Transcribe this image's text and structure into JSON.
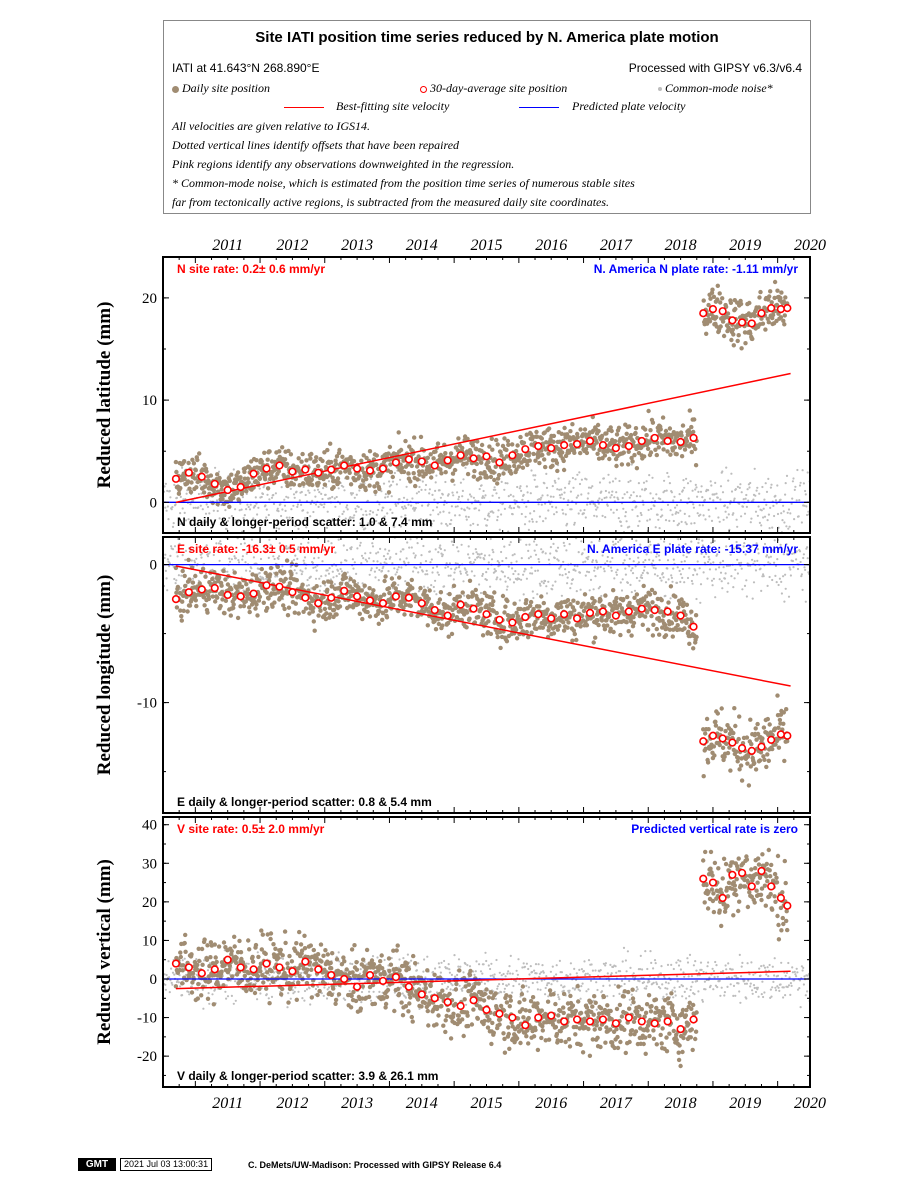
{
  "legend": {
    "title": "Site IATI position time series reduced by N. America plate motion",
    "site_location": "IATI at 41.643°N 268.890°E",
    "processing": "Processed with GIPSY v6.3/v6.4",
    "daily_label": "Daily site position",
    "avg_label": "30-day-average site position",
    "cm_label": "Common-mode noise*",
    "best_fit_label": "Best-fitting site velocity",
    "plate_label": "Predicted plate velocity",
    "notes": [
      "All velocities are given relative to IGS14.",
      "Dotted vertical lines identify offsets that have been repaired",
      "Pink regions identify any observations downweighted in the regression.",
      "* Common-mode noise, which is estimated from the position time series of numerous stable sites",
      "far from tectonically active regions, is subtracted from the measured daily site coordinates."
    ]
  },
  "colors": {
    "daily": "#a08c72",
    "avg_edge": "#ff0000",
    "avg_fill": "#ffffff",
    "common_mode": "#bdbdbd",
    "fit_line": "#ff0000",
    "plate_line": "#0000ff",
    "site_rate_text": "#ff0000",
    "plate_rate_text": "#0000ff"
  },
  "footer": {
    "logo": "GMT",
    "timestamp": "2021 Jul 03 13:00:31",
    "credit": "C. DeMets/UW-Madison: Processed with GIPSY Release 6.4"
  },
  "chart_data": [
    {
      "type": "scatter",
      "panel": "north",
      "ylabel": "Reduced latitude (mm)",
      "xlim": [
        2010.5,
        2020.5
      ],
      "ylim": [
        -3,
        24
      ],
      "yticks": [
        0,
        10,
        20
      ],
      "xticks": [
        2011,
        2012,
        2013,
        2014,
        2015,
        2016,
        2017,
        2018,
        2019,
        2020
      ],
      "xticklabels": [
        "2011",
        "2012",
        "2013",
        "2014",
        "2015",
        "2016",
        "2017",
        "2018",
        "2019",
        "2020"
      ],
      "site_rate": "N site rate:  0.2± 0.6 mm/yr",
      "plate_rate": "N. America N plate rate: -1.11 mm/yr",
      "scatter": "N daily & longer-period scatter:   1.0 &   7.4 mm",
      "fit_line": [
        [
          2010.7,
          0.0
        ],
        [
          2020.2,
          12.6
        ]
      ],
      "plate_line": [
        [
          2010.5,
          0.0
        ],
        [
          2020.5,
          0.0
        ]
      ],
      "segments": [
        {
          "t_start": 2010.7,
          "t_end": 2018.75,
          "avg": [
            [
              2010.7,
              2.3
            ],
            [
              2010.9,
              2.9
            ],
            [
              2011.1,
              2.5
            ],
            [
              2011.3,
              1.8
            ],
            [
              2011.5,
              1.2
            ],
            [
              2011.7,
              1.5
            ],
            [
              2011.9,
              2.8
            ],
            [
              2012.1,
              3.3
            ],
            [
              2012.3,
              3.6
            ],
            [
              2012.5,
              3.0
            ],
            [
              2012.7,
              3.2
            ],
            [
              2012.9,
              2.9
            ],
            [
              2013.1,
              3.2
            ],
            [
              2013.3,
              3.6
            ],
            [
              2013.5,
              3.3
            ],
            [
              2013.7,
              3.1
            ],
            [
              2013.9,
              3.3
            ],
            [
              2014.1,
              3.9
            ],
            [
              2014.3,
              4.2
            ],
            [
              2014.5,
              4.0
            ],
            [
              2014.7,
              3.6
            ],
            [
              2014.9,
              4.1
            ],
            [
              2015.1,
              4.6
            ],
            [
              2015.3,
              4.3
            ],
            [
              2015.5,
              4.5
            ],
            [
              2015.7,
              3.9
            ],
            [
              2015.9,
              4.6
            ],
            [
              2016.1,
              5.2
            ],
            [
              2016.3,
              5.5
            ],
            [
              2016.5,
              5.3
            ],
            [
              2016.7,
              5.6
            ],
            [
              2016.9,
              5.7
            ],
            [
              2017.1,
              6.0
            ],
            [
              2017.3,
              5.6
            ],
            [
              2017.5,
              5.3
            ],
            [
              2017.7,
              5.5
            ],
            [
              2017.9,
              6.0
            ],
            [
              2018.1,
              6.3
            ],
            [
              2018.3,
              6.0
            ],
            [
              2018.5,
              5.9
            ],
            [
              2018.7,
              6.3
            ]
          ],
          "noise": 1.0
        },
        {
          "t_start": 2018.85,
          "t_end": 2020.15,
          "avg": [
            [
              2018.85,
              18.5
            ],
            [
              2019.0,
              18.9
            ],
            [
              2019.15,
              18.7
            ],
            [
              2019.3,
              17.8
            ],
            [
              2019.45,
              17.6
            ],
            [
              2019.6,
              17.5
            ],
            [
              2019.75,
              18.5
            ],
            [
              2019.9,
              19.0
            ],
            [
              2020.05,
              18.9
            ],
            [
              2020.15,
              19.0
            ]
          ],
          "noise": 1.2
        }
      ],
      "common_mode_noise": 1.5
    },
    {
      "type": "scatter",
      "panel": "east",
      "ylabel": "Reduced longitude (mm)",
      "xlim": [
        2010.5,
        2020.5
      ],
      "ylim": [
        -18,
        2
      ],
      "yticks": [
        0,
        -10
      ],
      "xticks": [
        2011,
        2012,
        2013,
        2014,
        2015,
        2016,
        2017,
        2018,
        2019,
        2020
      ],
      "site_rate": "E site rate: -16.3± 0.5 mm/yr",
      "plate_rate": "N. America E plate rate: -15.37 mm/yr",
      "scatter": "E daily & longer-period scatter:   0.8 &   5.4 mm",
      "fit_line": [
        [
          2010.7,
          -0.1
        ],
        [
          2020.2,
          -8.8
        ]
      ],
      "plate_line": [
        [
          2010.5,
          0.0
        ],
        [
          2020.5,
          0.0
        ]
      ],
      "segments": [
        {
          "t_start": 2010.7,
          "t_end": 2018.75,
          "avg": [
            [
              2010.7,
              -2.5
            ],
            [
              2010.9,
              -2.0
            ],
            [
              2011.1,
              -1.8
            ],
            [
              2011.3,
              -1.7
            ],
            [
              2011.5,
              -2.2
            ],
            [
              2011.7,
              -2.3
            ],
            [
              2011.9,
              -2.1
            ],
            [
              2012.1,
              -1.5
            ],
            [
              2012.3,
              -1.6
            ],
            [
              2012.5,
              -2.0
            ],
            [
              2012.7,
              -2.4
            ],
            [
              2012.9,
              -2.8
            ],
            [
              2013.1,
              -2.4
            ],
            [
              2013.3,
              -1.9
            ],
            [
              2013.5,
              -2.3
            ],
            [
              2013.7,
              -2.6
            ],
            [
              2013.9,
              -2.8
            ],
            [
              2014.1,
              -2.3
            ],
            [
              2014.3,
              -2.4
            ],
            [
              2014.5,
              -2.8
            ],
            [
              2014.7,
              -3.3
            ],
            [
              2014.9,
              -3.7
            ],
            [
              2015.1,
              -2.9
            ],
            [
              2015.3,
              -3.2
            ],
            [
              2015.5,
              -3.6
            ],
            [
              2015.7,
              -4.0
            ],
            [
              2015.9,
              -4.2
            ],
            [
              2016.1,
              -3.8
            ],
            [
              2016.3,
              -3.6
            ],
            [
              2016.5,
              -3.9
            ],
            [
              2016.7,
              -3.6
            ],
            [
              2016.9,
              -3.9
            ],
            [
              2017.1,
              -3.5
            ],
            [
              2017.3,
              -3.4
            ],
            [
              2017.5,
              -3.7
            ],
            [
              2017.7,
              -3.4
            ],
            [
              2017.9,
              -3.2
            ],
            [
              2018.1,
              -3.3
            ],
            [
              2018.3,
              -3.4
            ],
            [
              2018.5,
              -3.7
            ],
            [
              2018.7,
              -4.5
            ]
          ],
          "noise": 0.8
        },
        {
          "t_start": 2018.85,
          "t_end": 2020.15,
          "avg": [
            [
              2018.85,
              -12.8
            ],
            [
              2019.0,
              -12.4
            ],
            [
              2019.15,
              -12.6
            ],
            [
              2019.3,
              -12.9
            ],
            [
              2019.45,
              -13.3
            ],
            [
              2019.6,
              -13.5
            ],
            [
              2019.75,
              -13.2
            ],
            [
              2019.9,
              -12.7
            ],
            [
              2020.05,
              -12.3
            ],
            [
              2020.15,
              -12.4
            ]
          ],
          "noise": 1.1
        }
      ],
      "common_mode_noise": 1.2
    },
    {
      "type": "scatter",
      "panel": "vertical",
      "ylabel": "Reduced vertical (mm)",
      "xlim": [
        2010.5,
        2020.5
      ],
      "ylim": [
        -28,
        42
      ],
      "yticks": [
        -20,
        -10,
        0,
        10,
        20,
        30,
        40
      ],
      "xticks": [
        2011,
        2012,
        2013,
        2014,
        2015,
        2016,
        2017,
        2018,
        2019,
        2020
      ],
      "xticklabels": [
        "2011",
        "2012",
        "2013",
        "2014",
        "2015",
        "2016",
        "2017",
        "2018",
        "2019",
        "2020"
      ],
      "site_rate": "V site rate:  0.5± 2.0 mm/yr",
      "plate_rate": "Predicted vertical rate is zero",
      "scatter": "V daily & longer-period scatter:   3.9 &  26.1 mm",
      "fit_line": [
        [
          2010.7,
          -2.5
        ],
        [
          2020.2,
          2.0
        ]
      ],
      "plate_line": [
        [
          2010.5,
          0.0
        ],
        [
          2020.5,
          0.0
        ]
      ],
      "segments": [
        {
          "t_start": 2010.7,
          "t_end": 2018.75,
          "avg": [
            [
              2010.7,
              4.0
            ],
            [
              2010.9,
              3.0
            ],
            [
              2011.1,
              1.5
            ],
            [
              2011.3,
              2.5
            ],
            [
              2011.5,
              5.0
            ],
            [
              2011.7,
              3.0
            ],
            [
              2011.9,
              2.5
            ],
            [
              2012.1,
              4.0
            ],
            [
              2012.3,
              3.0
            ],
            [
              2012.5,
              2.0
            ],
            [
              2012.7,
              4.5
            ],
            [
              2012.9,
              2.5
            ],
            [
              2013.1,
              1.0
            ],
            [
              2013.3,
              0.0
            ],
            [
              2013.5,
              -2.0
            ],
            [
              2013.7,
              1.0
            ],
            [
              2013.9,
              -0.5
            ],
            [
              2014.1,
              0.5
            ],
            [
              2014.3,
              -2.0
            ],
            [
              2014.5,
              -4.0
            ],
            [
              2014.7,
              -5.0
            ],
            [
              2014.9,
              -6.0
            ],
            [
              2015.1,
              -7.0
            ],
            [
              2015.3,
              -5.5
            ],
            [
              2015.5,
              -8.0
            ],
            [
              2015.7,
              -9.0
            ],
            [
              2015.9,
              -10.0
            ],
            [
              2016.1,
              -12.0
            ],
            [
              2016.3,
              -10.0
            ],
            [
              2016.5,
              -9.5
            ],
            [
              2016.7,
              -11.0
            ],
            [
              2016.9,
              -10.5
            ],
            [
              2017.1,
              -11.0
            ],
            [
              2017.3,
              -10.5
            ],
            [
              2017.5,
              -11.5
            ],
            [
              2017.7,
              -10.0
            ],
            [
              2017.9,
              -11.0
            ],
            [
              2018.1,
              -11.5
            ],
            [
              2018.3,
              -11.0
            ],
            [
              2018.5,
              -13.0
            ],
            [
              2018.7,
              -10.5
            ]
          ],
          "noise": 3.9
        },
        {
          "t_start": 2018.85,
          "t_end": 2020.15,
          "avg": [
            [
              2018.85,
              26.0
            ],
            [
              2019.0,
              25.0
            ],
            [
              2019.15,
              21.0
            ],
            [
              2019.3,
              27.0
            ],
            [
              2019.45,
              27.5
            ],
            [
              2019.6,
              24.0
            ],
            [
              2019.75,
              28.0
            ],
            [
              2019.9,
              24.0
            ],
            [
              2020.05,
              21.0
            ],
            [
              2020.15,
              19.0
            ]
          ],
          "noise": 4.5
        }
      ],
      "common_mode_noise": 3.0
    }
  ]
}
